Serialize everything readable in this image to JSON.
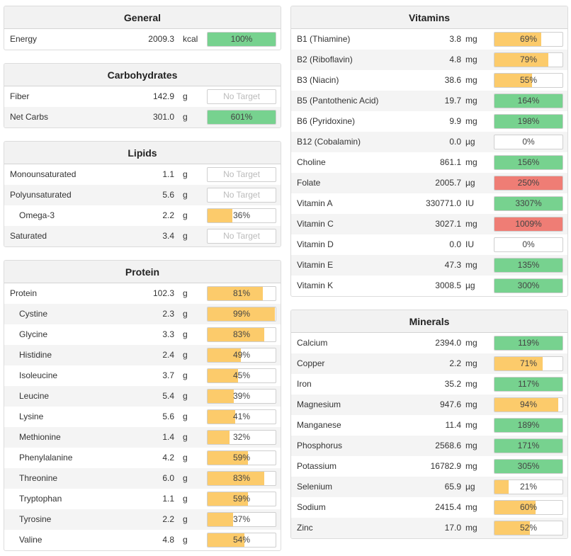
{
  "colors": {
    "ok": "#77d28f",
    "partial": "#fccb6b",
    "over": "#ef7d75"
  },
  "left": [
    {
      "id": "general",
      "title": "General",
      "rows": [
        {
          "name": "Energy",
          "amount": "2009.3",
          "unit": "kcal",
          "pct": "100%",
          "fill": 1.0,
          "status": "ok"
        }
      ]
    },
    {
      "id": "carbs",
      "title": "Carbohydrates",
      "rows": [
        {
          "name": "Fiber",
          "amount": "142.9",
          "unit": "g",
          "pct": "No Target",
          "fill": 0,
          "status": "none"
        },
        {
          "name": "Net Carbs",
          "amount": "301.0",
          "unit": "g",
          "pct": "601%",
          "fill": 1.0,
          "status": "ok"
        }
      ]
    },
    {
      "id": "lipids",
      "title": "Lipids",
      "rows": [
        {
          "name": "Monounsaturated",
          "amount": "1.1",
          "unit": "g",
          "pct": "No Target",
          "fill": 0,
          "status": "none"
        },
        {
          "name": "Polyunsaturated",
          "amount": "5.6",
          "unit": "g",
          "pct": "No Target",
          "fill": 0,
          "status": "none"
        },
        {
          "name": "Omega-3",
          "amount": "2.2",
          "unit": "g",
          "pct": "36%",
          "fill": 0.36,
          "status": "partial",
          "sub": true
        },
        {
          "name": "Saturated",
          "amount": "3.4",
          "unit": "g",
          "pct": "No Target",
          "fill": 0,
          "status": "none"
        }
      ]
    },
    {
      "id": "protein",
      "title": "Protein",
      "rows": [
        {
          "name": "Protein",
          "amount": "102.3",
          "unit": "g",
          "pct": "81%",
          "fill": 0.81,
          "status": "partial"
        },
        {
          "name": "Cystine",
          "amount": "2.3",
          "unit": "g",
          "pct": "99%",
          "fill": 0.99,
          "status": "partial",
          "sub": true
        },
        {
          "name": "Glycine",
          "amount": "3.3",
          "unit": "g",
          "pct": "83%",
          "fill": 0.83,
          "status": "partial",
          "sub": true
        },
        {
          "name": "Histidine",
          "amount": "2.4",
          "unit": "g",
          "pct": "49%",
          "fill": 0.49,
          "status": "partial",
          "sub": true
        },
        {
          "name": "Isoleucine",
          "amount": "3.7",
          "unit": "g",
          "pct": "45%",
          "fill": 0.45,
          "status": "partial",
          "sub": true
        },
        {
          "name": "Leucine",
          "amount": "5.4",
          "unit": "g",
          "pct": "39%",
          "fill": 0.39,
          "status": "partial",
          "sub": true
        },
        {
          "name": "Lysine",
          "amount": "5.6",
          "unit": "g",
          "pct": "41%",
          "fill": 0.41,
          "status": "partial",
          "sub": true
        },
        {
          "name": "Methionine",
          "amount": "1.4",
          "unit": "g",
          "pct": "32%",
          "fill": 0.32,
          "status": "partial",
          "sub": true
        },
        {
          "name": "Phenylalanine",
          "amount": "4.2",
          "unit": "g",
          "pct": "59%",
          "fill": 0.59,
          "status": "partial",
          "sub": true
        },
        {
          "name": "Threonine",
          "amount": "6.0",
          "unit": "g",
          "pct": "83%",
          "fill": 0.83,
          "status": "partial",
          "sub": true
        },
        {
          "name": "Tryptophan",
          "amount": "1.1",
          "unit": "g",
          "pct": "59%",
          "fill": 0.59,
          "status": "partial",
          "sub": true
        },
        {
          "name": "Tyrosine",
          "amount": "2.2",
          "unit": "g",
          "pct": "37%",
          "fill": 0.37,
          "status": "partial",
          "sub": true
        },
        {
          "name": "Valine",
          "amount": "4.8",
          "unit": "g",
          "pct": "54%",
          "fill": 0.54,
          "status": "partial",
          "sub": true
        }
      ]
    }
  ],
  "right": [
    {
      "id": "vitamins",
      "title": "Vitamins",
      "rows": [
        {
          "name": "B1 (Thiamine)",
          "amount": "3.8",
          "unit": "mg",
          "pct": "69%",
          "fill": 0.69,
          "status": "partial"
        },
        {
          "name": "B2 (Riboflavin)",
          "amount": "4.8",
          "unit": "mg",
          "pct": "79%",
          "fill": 0.79,
          "status": "partial"
        },
        {
          "name": "B3 (Niacin)",
          "amount": "38.6",
          "unit": "mg",
          "pct": "55%",
          "fill": 0.55,
          "status": "partial"
        },
        {
          "name": "B5 (Pantothenic Acid)",
          "amount": "19.7",
          "unit": "mg",
          "pct": "164%",
          "fill": 1.0,
          "status": "ok"
        },
        {
          "name": "B6 (Pyridoxine)",
          "amount": "9.9",
          "unit": "mg",
          "pct": "198%",
          "fill": 1.0,
          "status": "ok"
        },
        {
          "name": "B12 (Cobalamin)",
          "amount": "0.0",
          "unit": "µg",
          "pct": "0%",
          "fill": 0,
          "status": "partial"
        },
        {
          "name": "Choline",
          "amount": "861.1",
          "unit": "mg",
          "pct": "156%",
          "fill": 1.0,
          "status": "ok"
        },
        {
          "name": "Folate",
          "amount": "2005.7",
          "unit": "µg",
          "pct": "250%",
          "fill": 1.0,
          "status": "over"
        },
        {
          "name": "Vitamin A",
          "amount": "330771.0",
          "unit": "IU",
          "pct": "3307%",
          "fill": 1.0,
          "status": "ok"
        },
        {
          "name": "Vitamin C",
          "amount": "3027.1",
          "unit": "mg",
          "pct": "1009%",
          "fill": 1.0,
          "status": "over"
        },
        {
          "name": "Vitamin D",
          "amount": "0.0",
          "unit": "IU",
          "pct": "0%",
          "fill": 0,
          "status": "partial"
        },
        {
          "name": "Vitamin E",
          "amount": "47.3",
          "unit": "mg",
          "pct": "135%",
          "fill": 1.0,
          "status": "ok"
        },
        {
          "name": "Vitamin K",
          "amount": "3008.5",
          "unit": "µg",
          "pct": "300%",
          "fill": 1.0,
          "status": "ok"
        }
      ]
    },
    {
      "id": "minerals",
      "title": "Minerals",
      "rows": [
        {
          "name": "Calcium",
          "amount": "2394.0",
          "unit": "mg",
          "pct": "119%",
          "fill": 1.0,
          "status": "ok"
        },
        {
          "name": "Copper",
          "amount": "2.2",
          "unit": "mg",
          "pct": "71%",
          "fill": 0.71,
          "status": "partial"
        },
        {
          "name": "Iron",
          "amount": "35.2",
          "unit": "mg",
          "pct": "117%",
          "fill": 1.0,
          "status": "ok"
        },
        {
          "name": "Magnesium",
          "amount": "947.6",
          "unit": "mg",
          "pct": "94%",
          "fill": 0.94,
          "status": "partial"
        },
        {
          "name": "Manganese",
          "amount": "11.4",
          "unit": "mg",
          "pct": "189%",
          "fill": 1.0,
          "status": "ok"
        },
        {
          "name": "Phosphorus",
          "amount": "2568.6",
          "unit": "mg",
          "pct": "171%",
          "fill": 1.0,
          "status": "ok"
        },
        {
          "name": "Potassium",
          "amount": "16782.9",
          "unit": "mg",
          "pct": "305%",
          "fill": 1.0,
          "status": "ok"
        },
        {
          "name": "Selenium",
          "amount": "65.9",
          "unit": "µg",
          "pct": "21%",
          "fill": 0.21,
          "status": "partial"
        },
        {
          "name": "Sodium",
          "amount": "2415.4",
          "unit": "mg",
          "pct": "60%",
          "fill": 0.6,
          "status": "partial"
        },
        {
          "name": "Zinc",
          "amount": "17.0",
          "unit": "mg",
          "pct": "52%",
          "fill": 0.52,
          "status": "partial"
        }
      ]
    }
  ]
}
